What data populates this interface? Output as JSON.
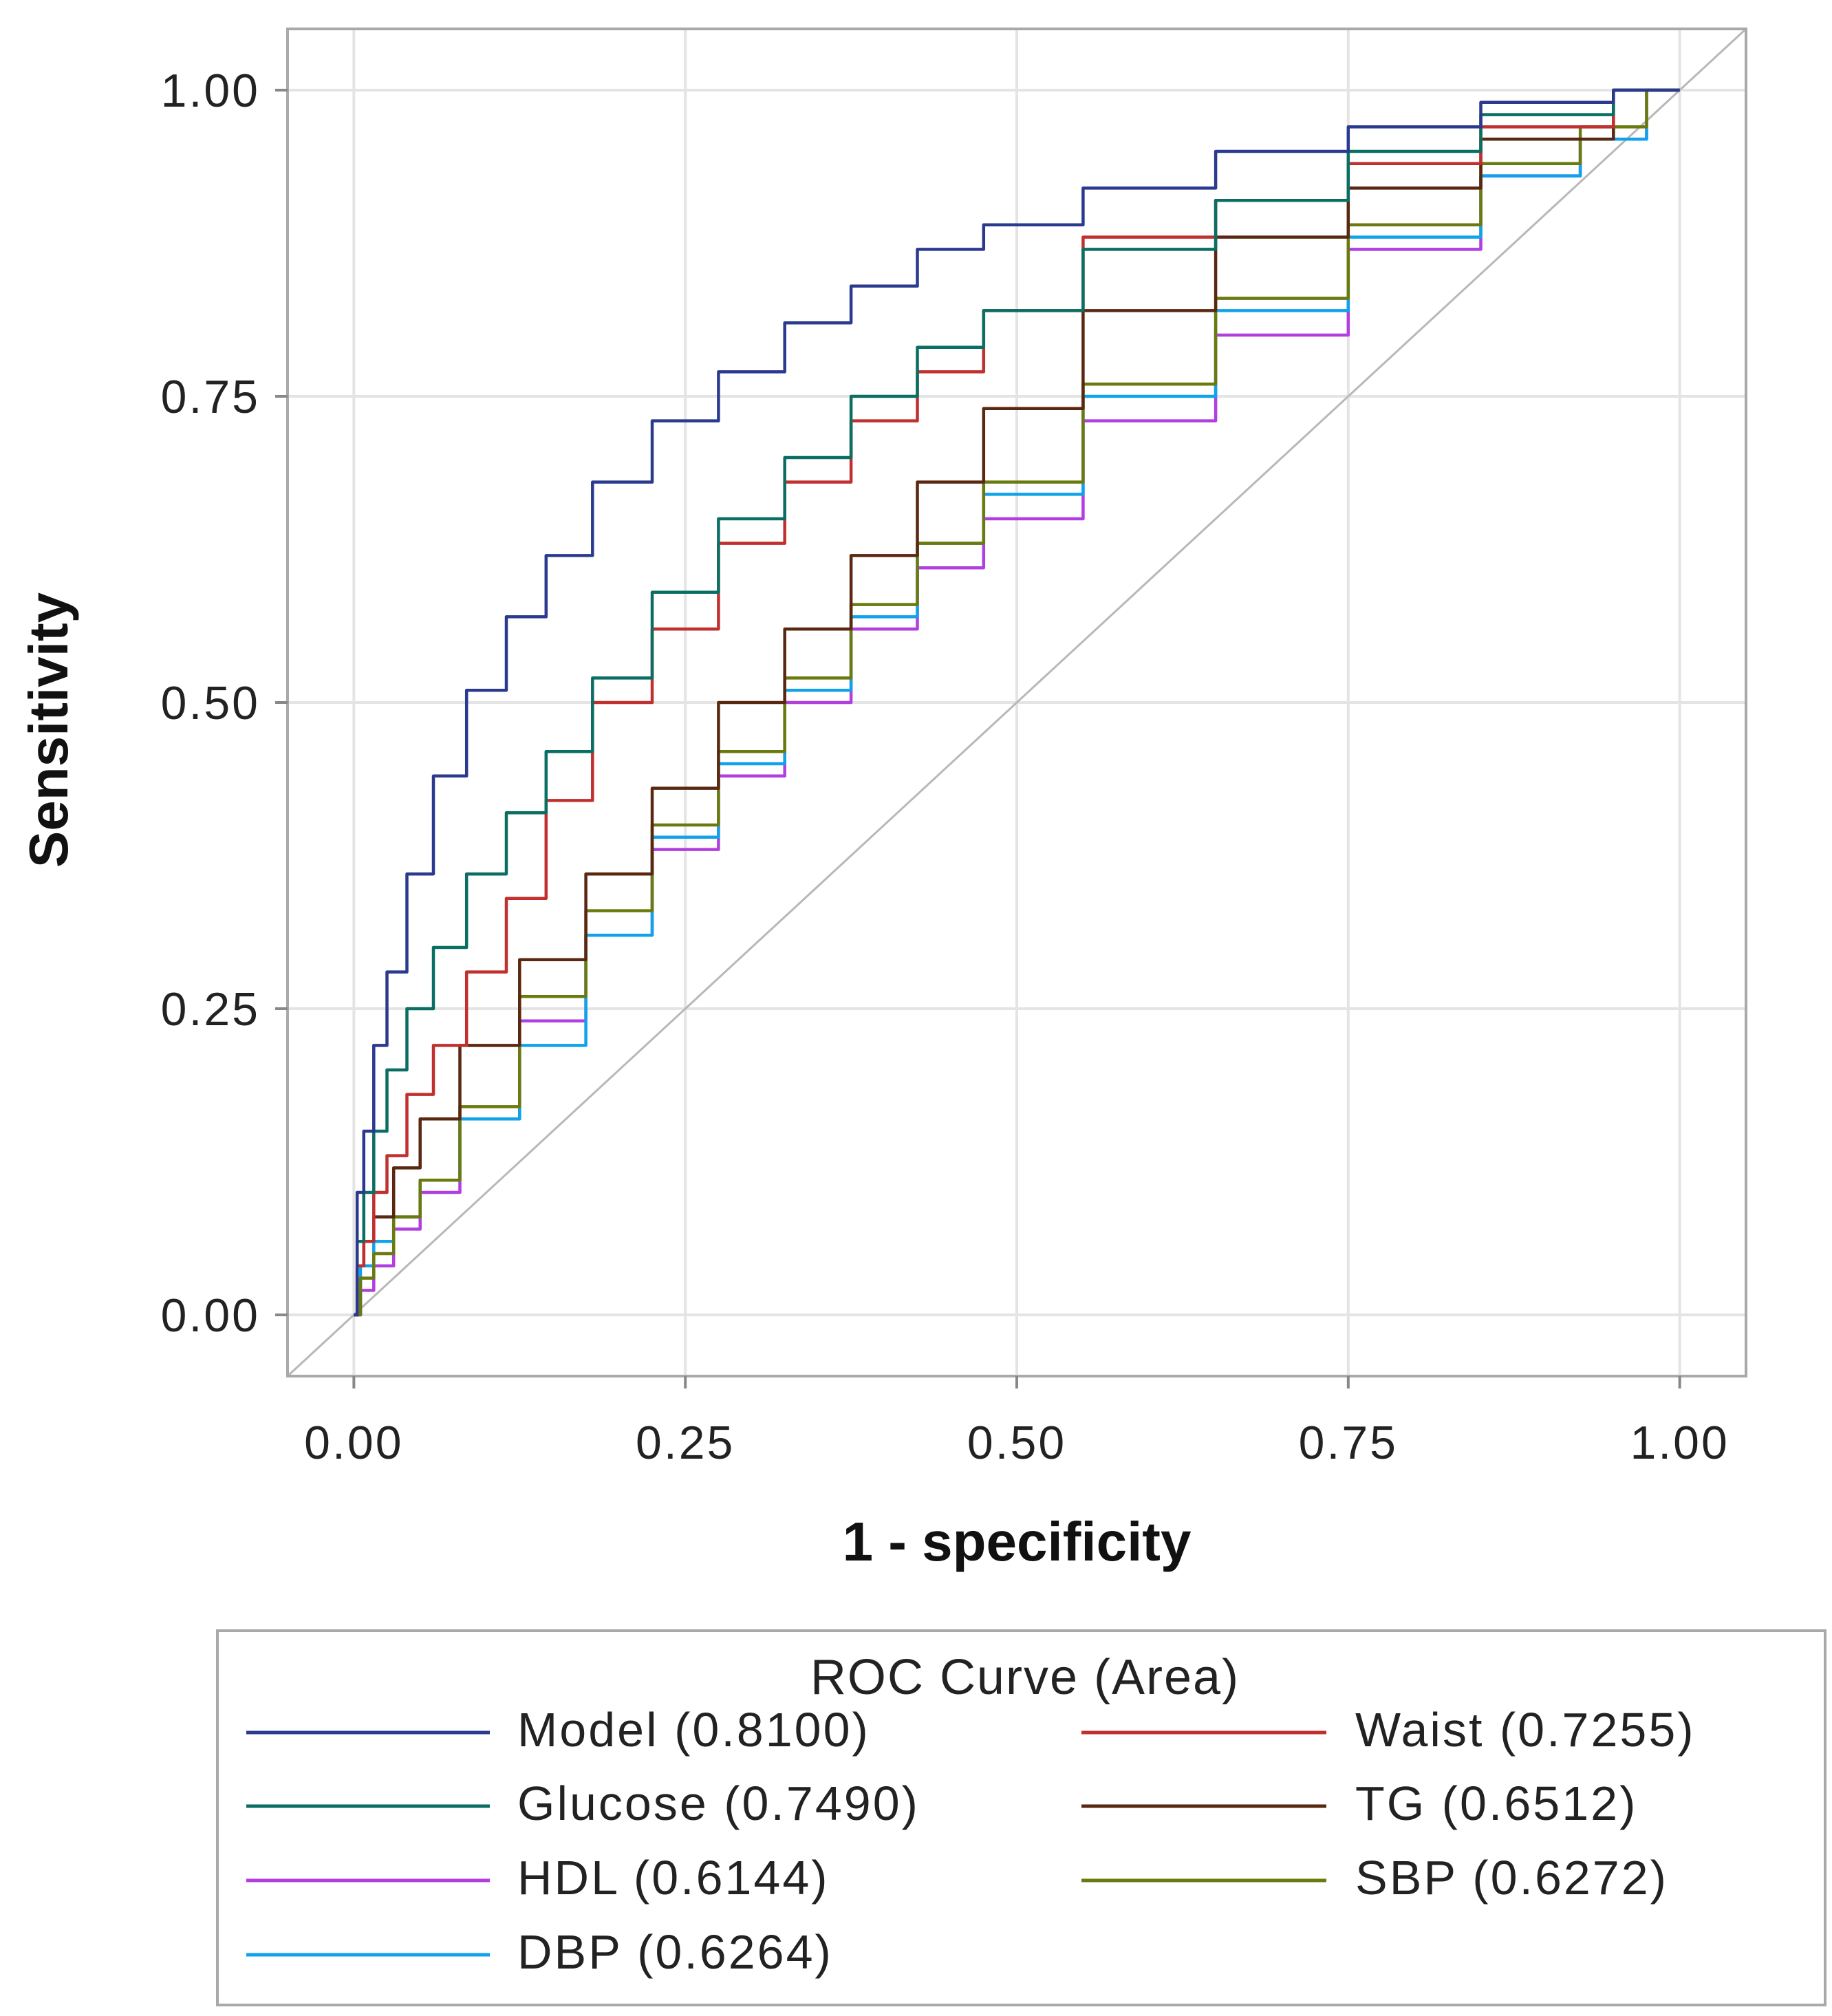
{
  "chart_data": {
    "type": "line",
    "xlabel": "1 - specificity",
    "ylabel": "Sensitivity",
    "xlim": [
      -0.05,
      1.05
    ],
    "ylim": [
      -0.05,
      1.05
    ],
    "xticks": [
      "0.00",
      "0.25",
      "0.50",
      "0.75",
      "1.00"
    ],
    "yticks": [
      "0.00",
      "0.25",
      "0.50",
      "0.75",
      "1.00"
    ],
    "tick_values": [
      0,
      0.25,
      0.5,
      0.75,
      1
    ],
    "grid": true,
    "reference_line": {
      "x": [
        -0.05,
        1.05
      ],
      "y": [
        -0.05,
        1.05
      ],
      "color": "#b8b8b8"
    },
    "legend": {
      "title": "ROC Curve (Area)",
      "placement": "bottom"
    },
    "series": [
      {
        "name": "Model",
        "area": "(0.8100)",
        "color": "#2b3a8f",
        "x": [
          0,
          0.005,
          0.01,
          0.02,
          0.03,
          0.05,
          0.07,
          0.1,
          0.13,
          0.16,
          0.2,
          0.25,
          0.3,
          0.35,
          0.4,
          0.45,
          0.5,
          0.6,
          0.7,
          0.8,
          0.9,
          1.0
        ],
        "y": [
          0,
          0.1,
          0.15,
          0.22,
          0.28,
          0.36,
          0.44,
          0.51,
          0.57,
          0.62,
          0.68,
          0.73,
          0.77,
          0.81,
          0.84,
          0.87,
          0.89,
          0.92,
          0.95,
          0.97,
          0.99,
          1.0
        ]
      },
      {
        "name": "Glucose",
        "area": "(0.7490)",
        "color": "#0a6e63",
        "x": [
          0,
          0.005,
          0.01,
          0.02,
          0.03,
          0.05,
          0.07,
          0.1,
          0.13,
          0.16,
          0.2,
          0.25,
          0.3,
          0.35,
          0.4,
          0.45,
          0.5,
          0.6,
          0.7,
          0.8,
          0.9,
          1.0
        ],
        "y": [
          0,
          0.06,
          0.1,
          0.15,
          0.2,
          0.25,
          0.3,
          0.36,
          0.41,
          0.46,
          0.52,
          0.59,
          0.65,
          0.7,
          0.75,
          0.79,
          0.82,
          0.87,
          0.91,
          0.95,
          0.98,
          1.0
        ]
      },
      {
        "name": "HDL",
        "area": "(0.6144)",
        "color": "#b13fe0",
        "x": [
          0,
          0.01,
          0.02,
          0.04,
          0.06,
          0.1,
          0.15,
          0.2,
          0.25,
          0.3,
          0.35,
          0.4,
          0.45,
          0.5,
          0.6,
          0.7,
          0.8,
          0.9,
          0.95,
          1.0
        ],
        "y": [
          0,
          0.02,
          0.04,
          0.07,
          0.1,
          0.16,
          0.24,
          0.31,
          0.38,
          0.44,
          0.5,
          0.56,
          0.61,
          0.65,
          0.73,
          0.8,
          0.87,
          0.93,
          0.96,
          1.0
        ]
      },
      {
        "name": "DBP",
        "area": "(0.6264)",
        "color": "#10a2ea",
        "x": [
          0,
          0.01,
          0.02,
          0.04,
          0.06,
          0.1,
          0.15,
          0.2,
          0.25,
          0.3,
          0.35,
          0.4,
          0.45,
          0.5,
          0.6,
          0.7,
          0.8,
          0.9,
          0.95,
          1.0
        ],
        "y": [
          0,
          0.04,
          0.06,
          0.08,
          0.11,
          0.16,
          0.22,
          0.31,
          0.39,
          0.45,
          0.51,
          0.57,
          0.63,
          0.67,
          0.75,
          0.82,
          0.88,
          0.93,
          0.96,
          1.0
        ]
      },
      {
        "name": "Waist",
        "area": "(0.7255)",
        "color": "#c0302f",
        "x": [
          0,
          0.005,
          0.01,
          0.02,
          0.03,
          0.05,
          0.07,
          0.1,
          0.13,
          0.16,
          0.2,
          0.25,
          0.3,
          0.35,
          0.4,
          0.45,
          0.5,
          0.6,
          0.7,
          0.8,
          0.9,
          1.0
        ],
        "y": [
          0,
          0.04,
          0.06,
          0.1,
          0.13,
          0.18,
          0.22,
          0.28,
          0.34,
          0.42,
          0.5,
          0.56,
          0.63,
          0.68,
          0.73,
          0.77,
          0.82,
          0.88,
          0.91,
          0.94,
          0.97,
          1.0
        ]
      },
      {
        "name": "TG",
        "area": "(0.6512)",
        "color": "#5a2810",
        "x": [
          0,
          0.005,
          0.01,
          0.02,
          0.04,
          0.06,
          0.1,
          0.15,
          0.2,
          0.25,
          0.3,
          0.35,
          0.4,
          0.45,
          0.5,
          0.6,
          0.7,
          0.8,
          0.9,
          1.0
        ],
        "y": [
          0,
          0.04,
          0.06,
          0.08,
          0.12,
          0.16,
          0.22,
          0.29,
          0.36,
          0.43,
          0.5,
          0.56,
          0.62,
          0.68,
          0.74,
          0.82,
          0.88,
          0.92,
          0.96,
          1.0
        ]
      },
      {
        "name": "SBP",
        "area": "(0.6272)",
        "color": "#6b7a0e",
        "x": [
          0,
          0.01,
          0.02,
          0.04,
          0.06,
          0.1,
          0.15,
          0.2,
          0.25,
          0.3,
          0.35,
          0.4,
          0.45,
          0.5,
          0.6,
          0.7,
          0.8,
          0.9,
          0.95,
          1.0
        ],
        "y": [
          0,
          0.03,
          0.05,
          0.08,
          0.11,
          0.17,
          0.26,
          0.33,
          0.4,
          0.46,
          0.52,
          0.58,
          0.63,
          0.68,
          0.76,
          0.83,
          0.89,
          0.94,
          0.97,
          1.0
        ]
      }
    ]
  }
}
